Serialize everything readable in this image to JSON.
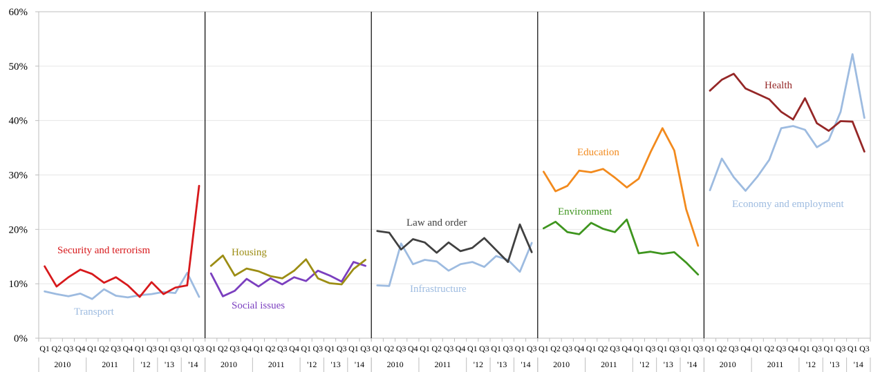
{
  "chart_data": {
    "type": "line",
    "title": "",
    "xlabel": "",
    "ylabel": "",
    "ylim": [
      0,
      60
    ],
    "yticks": [
      "0%",
      "10%",
      "20%",
      "30%",
      "40%",
      "50%",
      "60%"
    ],
    "grid": true,
    "colors": {
      "security": "#d7191c",
      "transport": "#9dbbe0",
      "housing": "#9c8d14",
      "social": "#7b3fbf",
      "law": "#404040",
      "education": "#f28a1d",
      "environment": "#3e951e",
      "health": "#952727",
      "economy": "#9dbbe0"
    },
    "quarters": [
      "Q1",
      "Q2",
      "Q3",
      "Q4",
      "Q1",
      "Q2",
      "Q3",
      "Q4",
      "Q1",
      "Q3",
      "Q1",
      "Q3",
      "Q1",
      "Q3"
    ],
    "year_groups": [
      {
        "label": "2010",
        "span": 4
      },
      {
        "label": "2011",
        "span": 4
      },
      {
        "label": "'12",
        "span": 2
      },
      {
        "label": "'13",
        "span": 2
      },
      {
        "label": "'14",
        "span": 2
      }
    ],
    "panels": [
      {
        "series": [
          {
            "name": "Security and terrorism",
            "color_key": "security",
            "values": [
              13.2,
              9.5,
              11.2,
              12.6,
              11.8,
              10.2,
              11.2,
              9.7,
              7.6,
              10.3,
              8.1,
              9.3,
              9.7,
              28.0
            ]
          },
          {
            "name": "Transport",
            "color_key": "transport",
            "values": [
              8.6,
              8.1,
              7.7,
              8.2,
              7.2,
              9.0,
              7.8,
              7.5,
              7.9,
              8.1,
              8.5,
              8.3,
              12.0,
              7.6
            ]
          }
        ]
      },
      {
        "series": [
          {
            "name": "Housing",
            "color_key": "housing",
            "values": [
              13.3,
              15.2,
              11.5,
              12.8,
              12.3,
              11.4,
              11.0,
              12.4,
              14.5,
              11.0,
              10.1,
              9.9,
              12.7,
              14.4
            ]
          },
          {
            "name": "Social issues",
            "color_key": "social",
            "values": [
              11.9,
              7.7,
              8.7,
              10.9,
              9.5,
              11.0,
              9.9,
              11.2,
              10.5,
              12.4,
              11.5,
              10.4,
              14.0,
              13.3
            ]
          }
        ]
      },
      {
        "series": [
          {
            "name": "Law and order",
            "color_key": "law",
            "values": [
              19.7,
              19.4,
              16.3,
              18.2,
              17.6,
              15.7,
              17.6,
              16.0,
              16.6,
              18.4,
              16.2,
              14.0,
              20.9,
              15.8
            ]
          },
          {
            "name": "Infrastructure",
            "color_key": "transport",
            "values": [
              9.7,
              9.6,
              17.4,
              13.6,
              14.4,
              14.1,
              12.4,
              13.6,
              14.0,
              13.1,
              15.1,
              14.4,
              12.2,
              17.5
            ]
          }
        ]
      },
      {
        "series": [
          {
            "name": "Education",
            "color_key": "education",
            "values": [
              30.6,
              27.0,
              28.0,
              30.8,
              30.5,
              31.1,
              29.5,
              27.7,
              29.3,
              34.2,
              38.6,
              34.5,
              23.7,
              17.0
            ]
          },
          {
            "name": "Environment",
            "color_key": "environment",
            "values": [
              20.2,
              21.4,
              19.5,
              19.1,
              21.2,
              20.1,
              19.5,
              21.8,
              15.6,
              15.9,
              15.5,
              15.8,
              13.9,
              11.7
            ]
          }
        ]
      },
      {
        "series": [
          {
            "name": "Health",
            "color_key": "health",
            "values": [
              45.5,
              47.5,
              48.6,
              45.9,
              44.9,
              43.9,
              41.6,
              40.2,
              44.1,
              39.5,
              38.1,
              39.9,
              39.8,
              34.3
            ]
          },
          {
            "name": "Economy and employment",
            "color_key": "economy",
            "values": [
              27.2,
              33.0,
              29.6,
              27.1,
              29.7,
              32.8,
              38.6,
              39.0,
              38.3,
              35.1,
              36.4,
              41.6,
              52.2,
              40.5
            ]
          }
        ]
      }
    ]
  }
}
